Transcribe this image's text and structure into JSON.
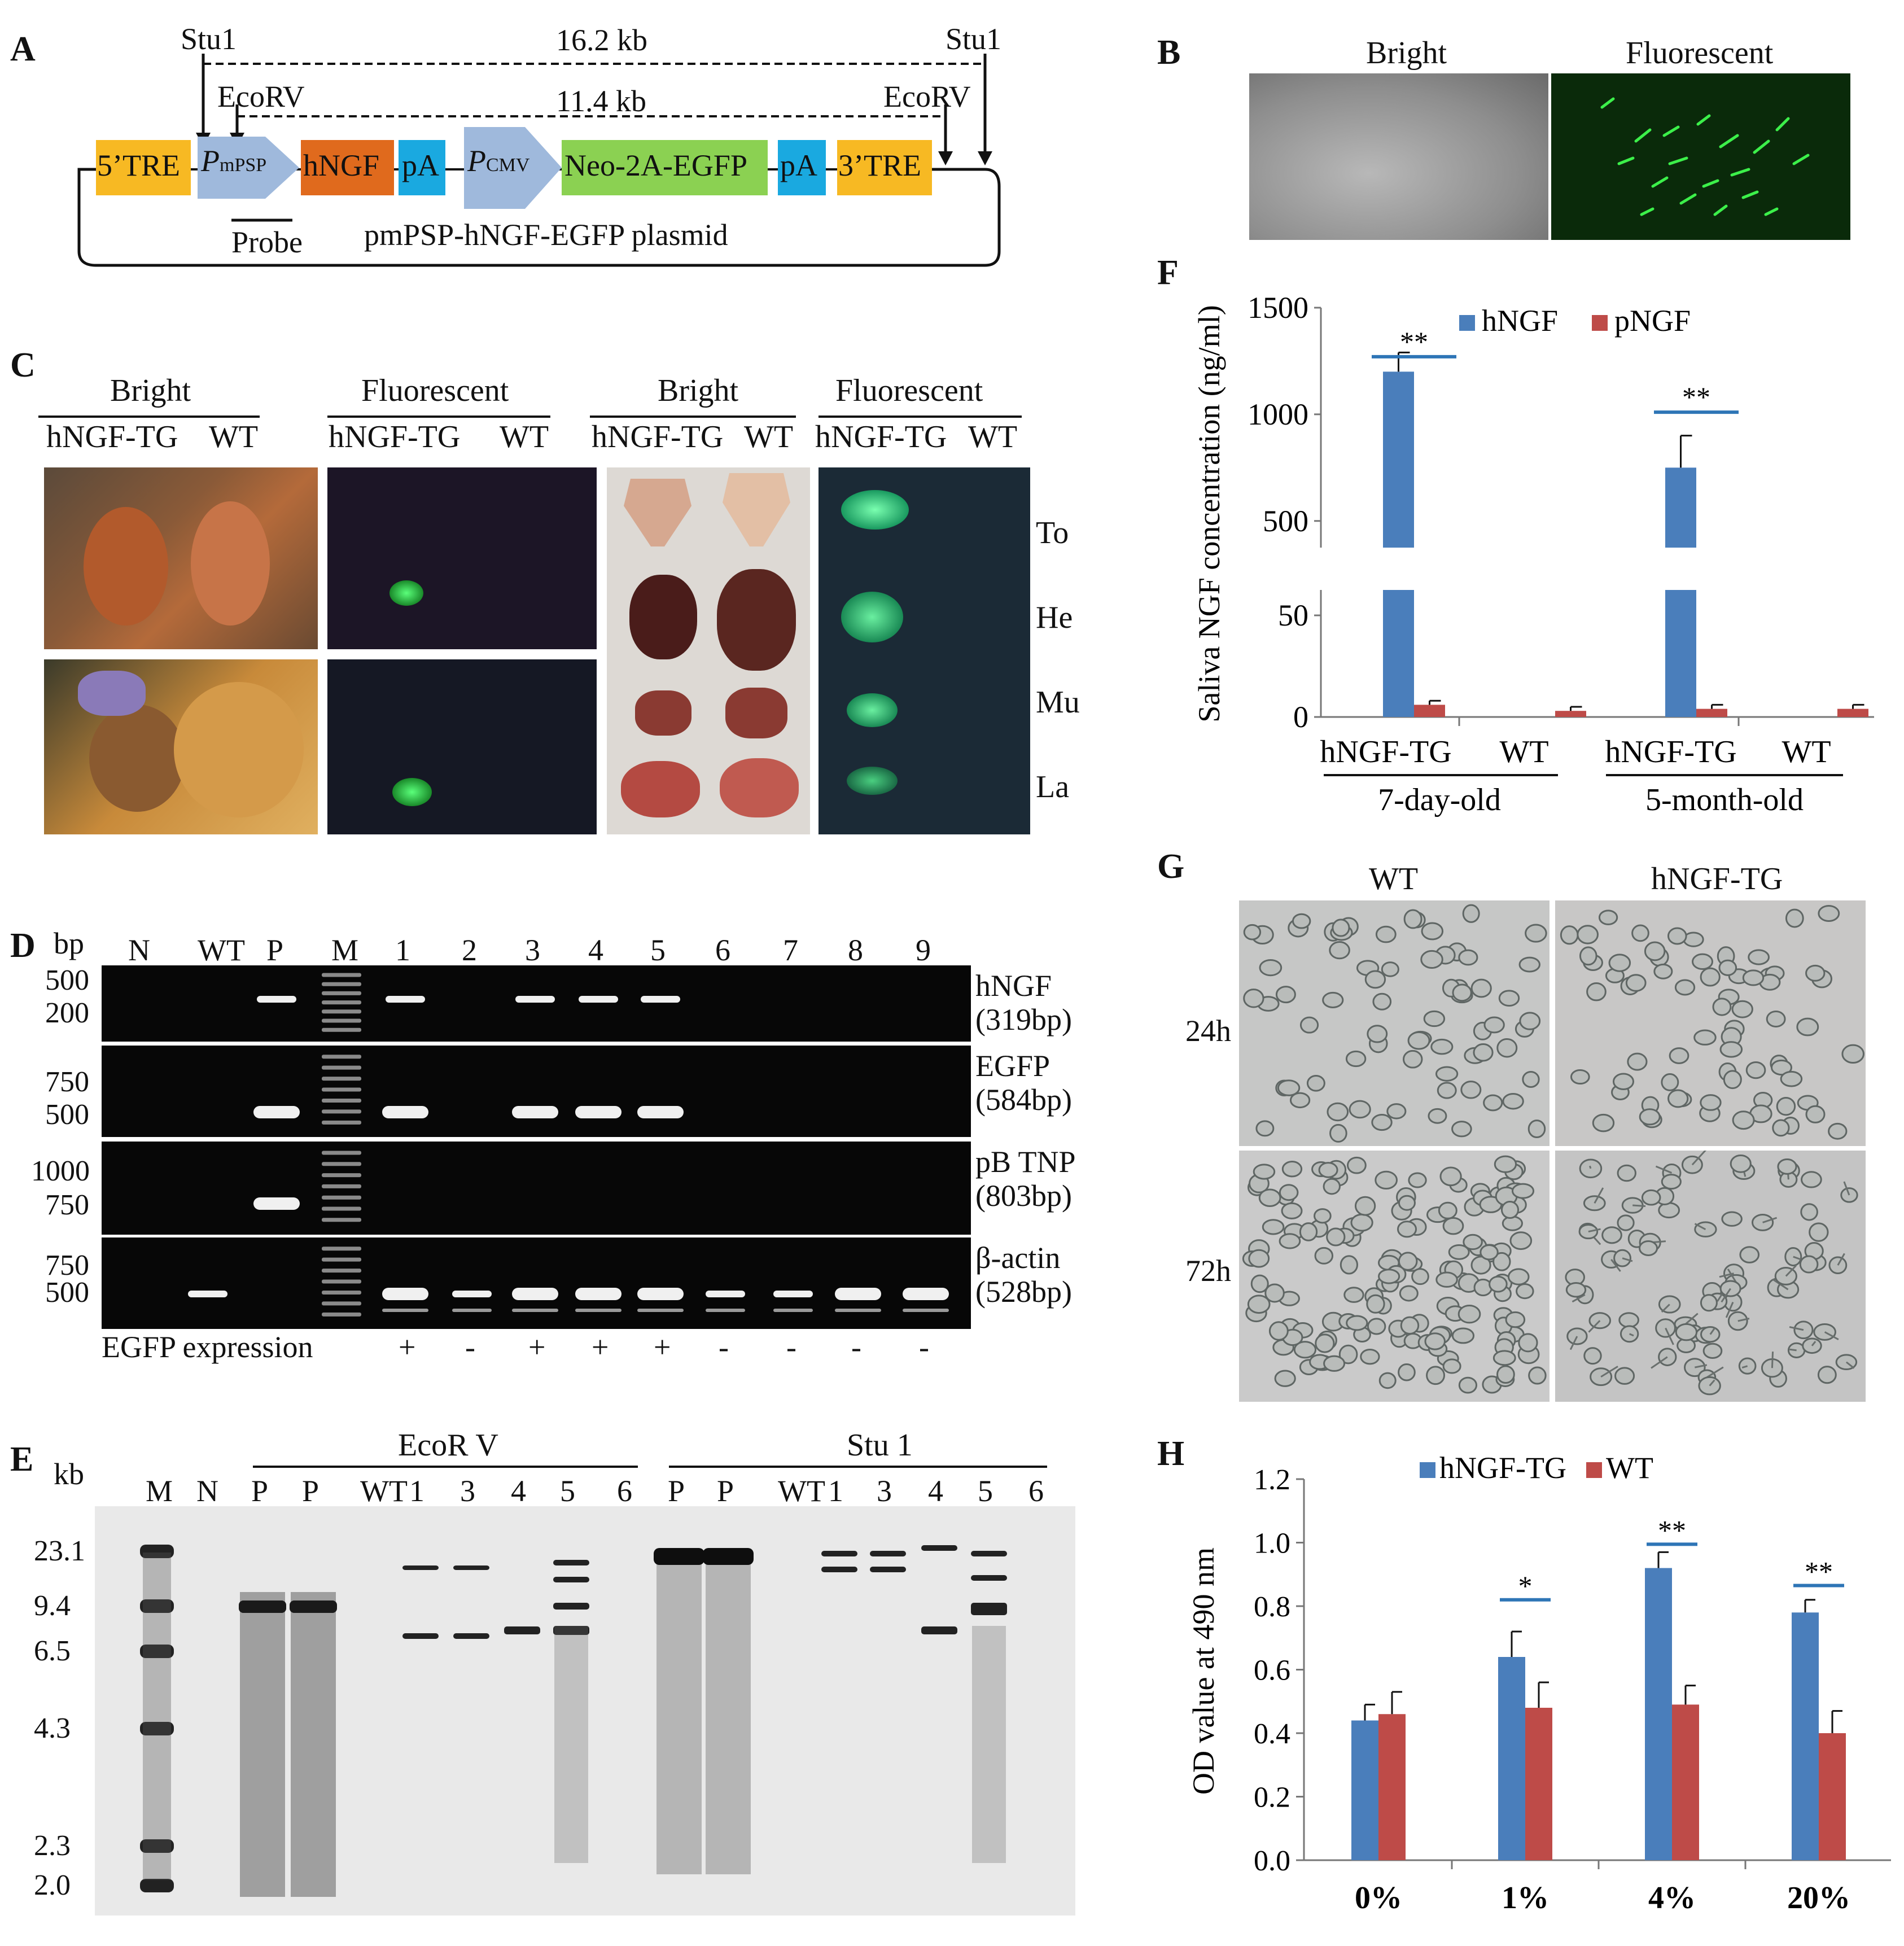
{
  "panelA": {
    "letter": "A",
    "stu1_left": "Stu1",
    "stu1_right": "Stu1",
    "ecorv_left": "EcoRV",
    "ecorv_right": "EcoRV",
    "size_stu": "16.2 kb",
    "size_ecorv": "11.4 kb",
    "elements": [
      "5’TRE",
      "P",
      "hNGF",
      "pA",
      "P",
      "Neo-2A-EGFP",
      "pA",
      "3’TRE"
    ],
    "promoter1_sub": "mPSP",
    "promoter2_sub": "CMV",
    "probe": "Probe",
    "plasmid": "pmPSP-hNGF-EGFP plasmid",
    "colors": {
      "tre": "#f7b923",
      "promoter": "#9fb9dc",
      "hngf": "#e06a1d",
      "pa": "#1aa9e0",
      "neo": "#8bd152"
    }
  },
  "panelB": {
    "letter": "B",
    "bright": "Bright",
    "fluorescent": "Fluorescent"
  },
  "panelC": {
    "letter": "C",
    "headers": [
      "Bright",
      "Fluorescent",
      "Bright",
      "Fluorescent"
    ],
    "subheaders": [
      "hNGF-TG",
      "WT"
    ],
    "organs": [
      "To",
      "He",
      "Mu",
      "La"
    ]
  },
  "panelD": {
    "letter": "D",
    "unit": "bp",
    "lanes": [
      "N",
      "WT",
      "P",
      "M",
      "1",
      "2",
      "3",
      "4",
      "5",
      "6",
      "7",
      "8",
      "9"
    ],
    "gels": [
      {
        "name": "hNGF",
        "size": "(319bp)",
        "ladder": [
          "500",
          "200"
        ]
      },
      {
        "name": "EGFP",
        "size": "(584bp)",
        "ladder": [
          "750",
          "500"
        ]
      },
      {
        "name": "pB TNP",
        "size": "(803bp)",
        "ladder": [
          "1000",
          "750"
        ]
      },
      {
        "name": "β-actin",
        "size": "(528bp)",
        "ladder": [
          "750",
          "500"
        ]
      }
    ],
    "expression_label": "EGFP expression",
    "expression": [
      "+",
      "-",
      "+",
      "+",
      "+",
      "-",
      "-",
      "-",
      "-"
    ]
  },
  "panelE": {
    "letter": "E",
    "unit": "kb",
    "group1": "EcoR V",
    "group2": "Stu 1",
    "lanes": [
      "M",
      "N",
      "P",
      "P",
      "WT",
      "1",
      "3",
      "4",
      "5",
      "6",
      "P",
      "P",
      "WT",
      "1",
      "3",
      "4",
      "5",
      "6"
    ],
    "markers": [
      "23.1",
      "9.4",
      "6.5",
      "4.3",
      "2.3",
      "2.0"
    ]
  },
  "panelF": {
    "letter": "F",
    "legend": [
      "hNGF",
      "pNGF"
    ],
    "ylabel": "Saliva NGF concentration (ng/ml)",
    "upper_ticks": [
      "1500",
      "1000",
      "500"
    ],
    "lower_ticks": [
      "50",
      "0"
    ],
    "groups": [
      "hNGF-TG",
      "WT",
      "hNGF-TG",
      "WT"
    ],
    "ages": [
      "7-day-old",
      "5-month-old"
    ],
    "sig": [
      "**",
      "**"
    ]
  },
  "panelG": {
    "letter": "G",
    "cols": [
      "WT",
      "hNGF-TG"
    ],
    "rows": [
      "24h",
      "72h"
    ]
  },
  "panelH": {
    "letter": "H",
    "legend": [
      "hNGF-TG",
      "WT"
    ],
    "ylabel": "OD value at 490 nm",
    "yticks": [
      "1.2",
      "1.0",
      "0.8",
      "0.6",
      "0.4",
      "0.2",
      "0.0"
    ],
    "sig": [
      "*",
      "**",
      "**"
    ]
  },
  "chart_data": [
    {
      "type": "bar",
      "categories": [
        "7-day-old hNGF-TG",
        "7-day-old WT",
        "5-month-old hNGF-TG",
        "5-month-old WT"
      ],
      "series": [
        {
          "name": "hNGF",
          "values": [
            1200,
            0,
            750,
            0
          ],
          "errors": [
            90,
            0,
            150,
            0
          ],
          "color": "#4a7ebb"
        },
        {
          "name": "pNGF",
          "values": [
            6,
            3,
            4,
            4
          ],
          "errors": [
            2,
            2,
            2,
            2
          ],
          "color": "#be4b48"
        }
      ],
      "ylabel": "Saliva NGF concentration (ng/ml)",
      "ylim": [
        0,
        1500
      ],
      "broken_axis": true
    },
    {
      "type": "bar",
      "categories": [
        "0%",
        "1%",
        "4%",
        "20%"
      ],
      "series": [
        {
          "name": "hNGF-TG",
          "values": [
            0.44,
            0.64,
            0.92,
            0.78
          ],
          "errors": [
            0.05,
            0.08,
            0.05,
            0.04
          ],
          "color": "#4a7ebb"
        },
        {
          "name": "WT",
          "values": [
            0.46,
            0.48,
            0.49,
            0.4
          ],
          "errors": [
            0.07,
            0.08,
            0.06,
            0.07
          ],
          "color": "#be4b48"
        }
      ],
      "ylabel": "OD value at 490 nm",
      "ylim": [
        0,
        1.2
      ]
    }
  ]
}
